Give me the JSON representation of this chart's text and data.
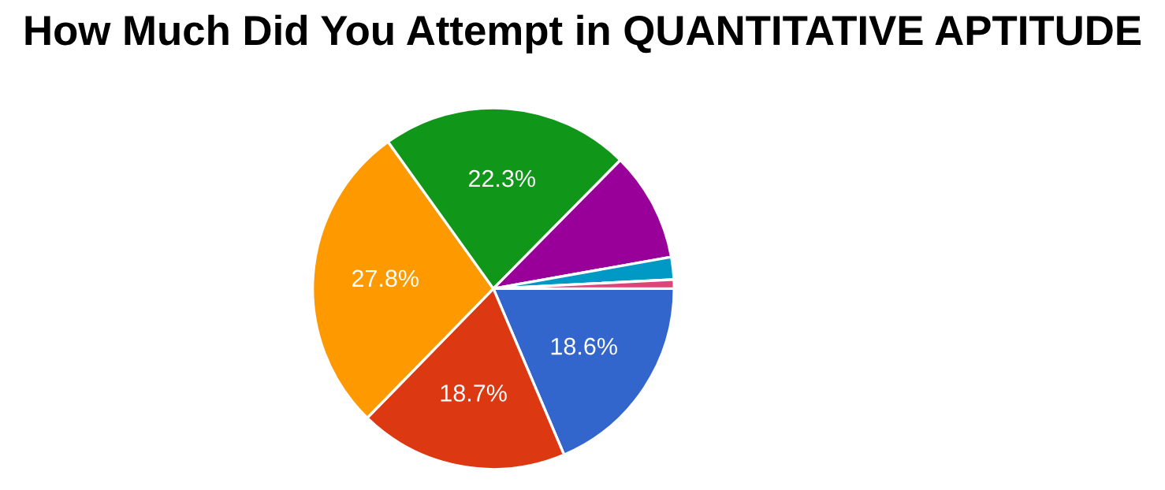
{
  "chart_data": {
    "type": "pie",
    "title": "How Much Did You Attempt in QUANTITATIVE APTITUDE",
    "categories": [
      null,
      null,
      null,
      null,
      null,
      null,
      null
    ],
    "values": [
      18.6,
      18.7,
      27.8,
      22.3,
      9.8,
      2.0,
      0.8
    ],
    "colors": [
      "#3366cc",
      "#dc3912",
      "#ff9900",
      "#109618",
      "#990099",
      "#0099c6",
      "#dd4477"
    ],
    "value_labels": [
      "18.6%",
      "18.7%",
      "27.8%",
      "22.3%",
      null,
      null,
      null
    ]
  }
}
